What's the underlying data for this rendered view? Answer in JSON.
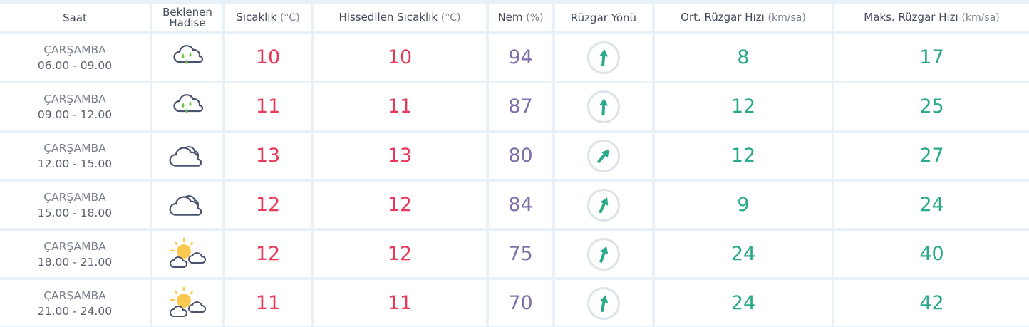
{
  "headers": [
    {
      "label": "Saat",
      "unit": ""
    },
    {
      "label": "Beklenen Hadise",
      "unit": ""
    },
    {
      "label": "Sıcaklık",
      "unit": "(°C)"
    },
    {
      "label": "Hissedilen Sıcaklık",
      "unit": "(°C)"
    },
    {
      "label": "Nem",
      "unit": "(%)"
    },
    {
      "label": "Rüzgar Yönü",
      "unit": ""
    },
    {
      "label": "Ort. Rüzgar Hızı",
      "unit": "(km/sa)"
    },
    {
      "label": "Maks. Rüzgar Hızı",
      "unit": "(km/sa)"
    }
  ],
  "colors": {
    "temp": "#e8395a",
    "humidity": "#7f6fab",
    "wind": "#2aaa8a",
    "rain": "#6cc644",
    "sun": "#fbc94f",
    "cloud": "#4a5270"
  },
  "rows": [
    {
      "day": "ÇARŞAMBA",
      "time": "06.00 - 09.00",
      "icon": "rain-cloud-icon",
      "temp": "10",
      "feels": "10",
      "humidity": "94",
      "wind_dir_deg": 5,
      "avg_wind": "8",
      "max_wind": "17"
    },
    {
      "day": "ÇARŞAMBA",
      "time": "09.00 - 12.00",
      "icon": "rain-cloud-icon",
      "temp": "11",
      "feels": "11",
      "humidity": "87",
      "wind_dir_deg": 3,
      "avg_wind": "12",
      "max_wind": "25"
    },
    {
      "day": "ÇARŞAMBA",
      "time": "12.00 - 15.00",
      "icon": "cloud-icon",
      "temp": "13",
      "feels": "13",
      "humidity": "80",
      "wind_dir_deg": 40,
      "avg_wind": "12",
      "max_wind": "27"
    },
    {
      "day": "ÇARŞAMBA",
      "time": "15.00 - 18.00",
      "icon": "cloud-icon",
      "temp": "12",
      "feels": "12",
      "humidity": "84",
      "wind_dir_deg": 25,
      "avg_wind": "9",
      "max_wind": "24"
    },
    {
      "day": "ÇARŞAMBA",
      "time": "18.00 - 21.00",
      "icon": "partly-sunny-icon",
      "temp": "12",
      "feels": "12",
      "humidity": "75",
      "wind_dir_deg": 20,
      "avg_wind": "24",
      "max_wind": "40"
    },
    {
      "day": "ÇARŞAMBA",
      "time": "21.00 - 24.00",
      "icon": "partly-sunny-icon",
      "temp": "11",
      "feels": "11",
      "humidity": "70",
      "wind_dir_deg": 12,
      "avg_wind": "24",
      "max_wind": "42"
    }
  ]
}
